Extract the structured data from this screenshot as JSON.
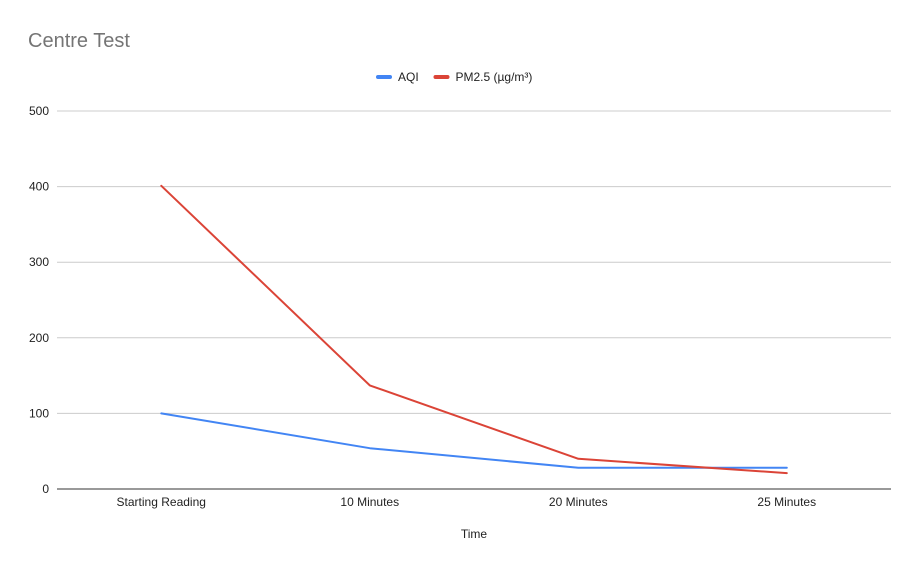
{
  "chart_data": {
    "type": "line",
    "title": "Centre Test",
    "xlabel": "Time",
    "ylabel": "",
    "categories": [
      "Starting Reading",
      "10 Minutes",
      "20 Minutes",
      "25 Minutes"
    ],
    "ylim": [
      0,
      500
    ],
    "yticks": [
      0,
      100,
      200,
      300,
      400,
      500
    ],
    "grid": true,
    "legend_position": "top-center",
    "series": [
      {
        "name": "AQI",
        "color": "#4285f4",
        "values": [
          100,
          54,
          28,
          28
        ]
      },
      {
        "name": "PM2.5 (µg/m³)",
        "color": "#db4437",
        "values": [
          401,
          137,
          40,
          21
        ]
      }
    ]
  }
}
